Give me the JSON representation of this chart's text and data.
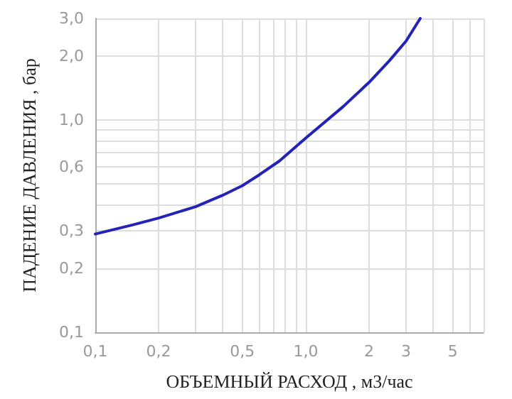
{
  "chart_data": {
    "type": "line",
    "xlabel": "ОБЪЕМНЫЙ РАСХОД , м3/час",
    "ylabel": "ПАДЕНИЕ ДАВЛЕНИЯ , бар",
    "log": "xy",
    "grid": true,
    "marker": "none",
    "line_style": "solid",
    "x": [
      0.1,
      0.15,
      0.2,
      0.3,
      0.4,
      0.5,
      0.6,
      0.75,
      1.0,
      1.5,
      2,
      2.5,
      3,
      3.5
    ],
    "series": [
      {
        "color": "#2323b8",
        "values": [
          0.29,
          0.32,
          0.345,
          0.39,
          0.44,
          0.49,
          0.55,
          0.64,
          0.82,
          1.15,
          1.5,
          1.9,
          2.35,
          3.0
        ]
      }
    ],
    "xlim": [
      0.1,
      7
    ],
    "ylim": [
      0.1,
      3
    ],
    "xticks": [
      {
        "value": 0.1,
        "label": "0,1"
      },
      {
        "value": 0.2,
        "label": "0,2"
      },
      {
        "value": 0.3,
        "label": null
      },
      {
        "value": 0.4,
        "label": null
      },
      {
        "value": 0.5,
        "label": "0,5"
      },
      {
        "value": 0.6,
        "label": null
      },
      {
        "value": 0.7,
        "label": null
      },
      {
        "value": 0.8,
        "label": null
      },
      {
        "value": 0.9,
        "label": null
      },
      {
        "value": 1,
        "label": "1,0"
      },
      2,
      3,
      {
        "value": 4,
        "label": null
      },
      5,
      {
        "value": 6,
        "label": null
      },
      {
        "value": 7,
        "label": null
      }
    ],
    "yticks": [
      {
        "value": 0.1,
        "label": "0,1"
      },
      {
        "value": 0.2,
        "label": "0,2"
      },
      {
        "value": 0.3,
        "label": "0,3"
      },
      {
        "value": 0.4,
        "label": null
      },
      {
        "value": 0.5,
        "label": null
      },
      {
        "value": 0.6,
        "label": "0,6"
      },
      {
        "value": 0.7,
        "label": null
      },
      {
        "value": 0.8,
        "label": null
      },
      {
        "value": 0.9,
        "label": null
      },
      {
        "value": 1,
        "label": "1,0"
      },
      {
        "value": 2,
        "label": "2,0"
      },
      {
        "value": 3,
        "label": "3,0"
      }
    ]
  }
}
